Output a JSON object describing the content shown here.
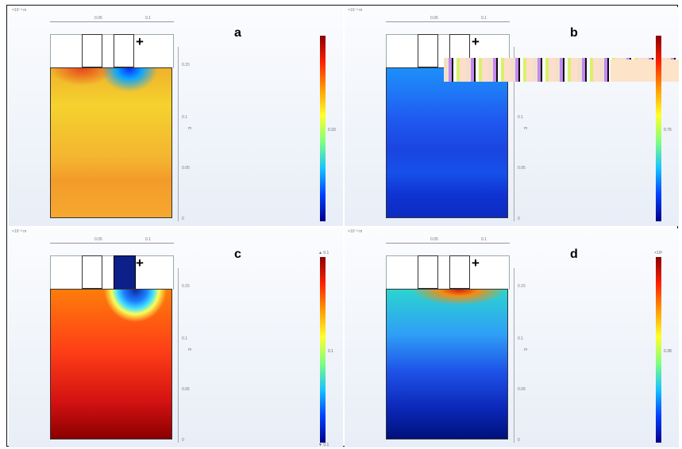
{
  "panels": {
    "a": {
      "letter": "a",
      "cbar_mid": "0.33"
    },
    "b": {
      "letter": "b",
      "cbar_mid": "0.76"
    },
    "c": {
      "letter": "c",
      "cbar_mid": "0.1",
      "cbar_top": "▲ 0.1",
      "cbar_bot": "▼ 0.1"
    },
    "d": {
      "letter": "d",
      "cbar_mid": "0.38",
      "cbar_top": "×10³"
    }
  },
  "axes": {
    "coord_label": "×10⁻³ m",
    "top_tick_1": "0.05",
    "top_tick_2": "0.1",
    "right_tick_1": "0.15",
    "right_tick_2": "0.1",
    "right_tick_3": "0.05",
    "right_tick_4": "0",
    "right_unit": "m"
  },
  "colormap": [
    "#8b0000",
    "#ff2000",
    "#ff9a00",
    "#ffff2a",
    "#7fff80",
    "#17c4ff",
    "#0040ff",
    "#00008b"
  ],
  "electrode_marker": "+"
}
